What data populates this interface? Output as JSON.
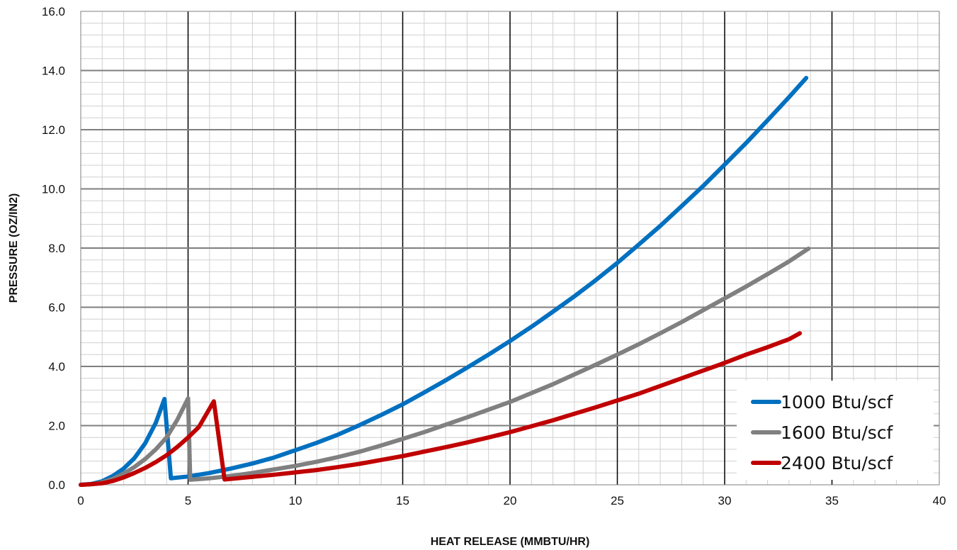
{
  "chart_data": {
    "type": "line",
    "title": "",
    "xlabel": "HEAT RELEASE (MMBTU/HR)",
    "ylabel": "PRESSURE (OZ/IN2)",
    "xlim": [
      0,
      40
    ],
    "ylim": [
      0,
      16
    ],
    "x_ticks": [
      "0",
      "5",
      "10",
      "15",
      "20",
      "25",
      "30",
      "35",
      "40"
    ],
    "y_ticks": [
      "0.0",
      "2.0",
      "4.0",
      "6.0",
      "8.0",
      "10.0",
      "12.0",
      "14.0",
      "16.0"
    ],
    "x_major_step": 5,
    "x_minor_step": 1,
    "y_major_step": 2,
    "y_minor_step": 0.4,
    "grid": true,
    "legend_position": "bottom-right",
    "series": [
      {
        "name": "1000 Btu/scf",
        "color": "#0070C0",
        "points": [
          [
            0,
            0
          ],
          [
            0.5,
            0.03
          ],
          [
            1,
            0.12
          ],
          [
            1.5,
            0.3
          ],
          [
            2,
            0.55
          ],
          [
            2.5,
            0.9
          ],
          [
            3,
            1.4
          ],
          [
            3.5,
            2.1
          ],
          [
            3.9,
            2.9
          ],
          [
            4.2,
            0.22
          ],
          [
            5,
            0.28
          ],
          [
            6,
            0.4
          ],
          [
            7,
            0.55
          ],
          [
            8,
            0.72
          ],
          [
            9,
            0.92
          ],
          [
            10,
            1.17
          ],
          [
            11,
            1.42
          ],
          [
            12,
            1.7
          ],
          [
            13,
            2.02
          ],
          [
            14,
            2.36
          ],
          [
            15,
            2.72
          ],
          [
            16,
            3.12
          ],
          [
            17,
            3.53
          ],
          [
            18,
            3.96
          ],
          [
            19,
            4.4
          ],
          [
            20,
            4.86
          ],
          [
            21,
            5.34
          ],
          [
            22,
            5.85
          ],
          [
            23,
            6.37
          ],
          [
            24,
            6.92
          ],
          [
            25,
            7.5
          ],
          [
            26,
            8.12
          ],
          [
            27,
            8.75
          ],
          [
            28,
            9.42
          ],
          [
            29,
            10.1
          ],
          [
            30,
            10.82
          ],
          [
            31,
            11.55
          ],
          [
            32,
            12.32
          ],
          [
            33,
            13.1
          ],
          [
            33.8,
            13.75
          ]
        ]
      },
      {
        "name": "1600 Btu/scf",
        "color": "#808080",
        "points": [
          [
            0,
            0
          ],
          [
            0.5,
            0.02
          ],
          [
            1,
            0.08
          ],
          [
            1.5,
            0.2
          ],
          [
            2,
            0.38
          ],
          [
            2.5,
            0.6
          ],
          [
            3,
            0.87
          ],
          [
            3.5,
            1.2
          ],
          [
            4,
            1.6
          ],
          [
            4.5,
            2.2
          ],
          [
            5,
            2.92
          ],
          [
            5.1,
            0.17
          ],
          [
            6,
            0.22
          ],
          [
            7,
            0.3
          ],
          [
            8,
            0.4
          ],
          [
            9,
            0.52
          ],
          [
            10,
            0.64
          ],
          [
            11,
            0.78
          ],
          [
            12,
            0.94
          ],
          [
            13,
            1.12
          ],
          [
            14,
            1.33
          ],
          [
            15,
            1.55
          ],
          [
            16,
            1.78
          ],
          [
            17,
            2.03
          ],
          [
            18,
            2.28
          ],
          [
            19,
            2.54
          ],
          [
            20,
            2.8
          ],
          [
            21,
            3.1
          ],
          [
            22,
            3.4
          ],
          [
            23,
            3.73
          ],
          [
            24,
            4.06
          ],
          [
            25,
            4.4
          ],
          [
            26,
            4.75
          ],
          [
            27,
            5.12
          ],
          [
            28,
            5.5
          ],
          [
            29,
            5.9
          ],
          [
            30,
            6.3
          ],
          [
            31,
            6.7
          ],
          [
            32,
            7.12
          ],
          [
            33,
            7.55
          ],
          [
            33.9,
            7.98
          ]
        ]
      },
      {
        "name": "2400 Btu/scf",
        "color": "#C00000",
        "points": [
          [
            0,
            0
          ],
          [
            0.5,
            0.02
          ],
          [
            1,
            0.05
          ],
          [
            1.5,
            0.13
          ],
          [
            2,
            0.25
          ],
          [
            2.5,
            0.4
          ],
          [
            3,
            0.57
          ],
          [
            3.5,
            0.77
          ],
          [
            4,
            1.0
          ],
          [
            4.5,
            1.28
          ],
          [
            5,
            1.6
          ],
          [
            5.5,
            1.95
          ],
          [
            6.2,
            2.82
          ],
          [
            6.7,
            0.18
          ],
          [
            7,
            0.2
          ],
          [
            8,
            0.27
          ],
          [
            9,
            0.34
          ],
          [
            10,
            0.42
          ],
          [
            11,
            0.5
          ],
          [
            12,
            0.6
          ],
          [
            13,
            0.71
          ],
          [
            14,
            0.84
          ],
          [
            15,
            0.97
          ],
          [
            16,
            1.12
          ],
          [
            17,
            1.27
          ],
          [
            18,
            1.43
          ],
          [
            19,
            1.6
          ],
          [
            20,
            1.78
          ],
          [
            21,
            1.98
          ],
          [
            22,
            2.18
          ],
          [
            23,
            2.4
          ],
          [
            24,
            2.62
          ],
          [
            25,
            2.85
          ],
          [
            26,
            3.08
          ],
          [
            27,
            3.34
          ],
          [
            28,
            3.6
          ],
          [
            29,
            3.86
          ],
          [
            30,
            4.12
          ],
          [
            31,
            4.4
          ],
          [
            32,
            4.65
          ],
          [
            33,
            4.92
          ],
          [
            33.5,
            5.12
          ]
        ]
      }
    ]
  }
}
